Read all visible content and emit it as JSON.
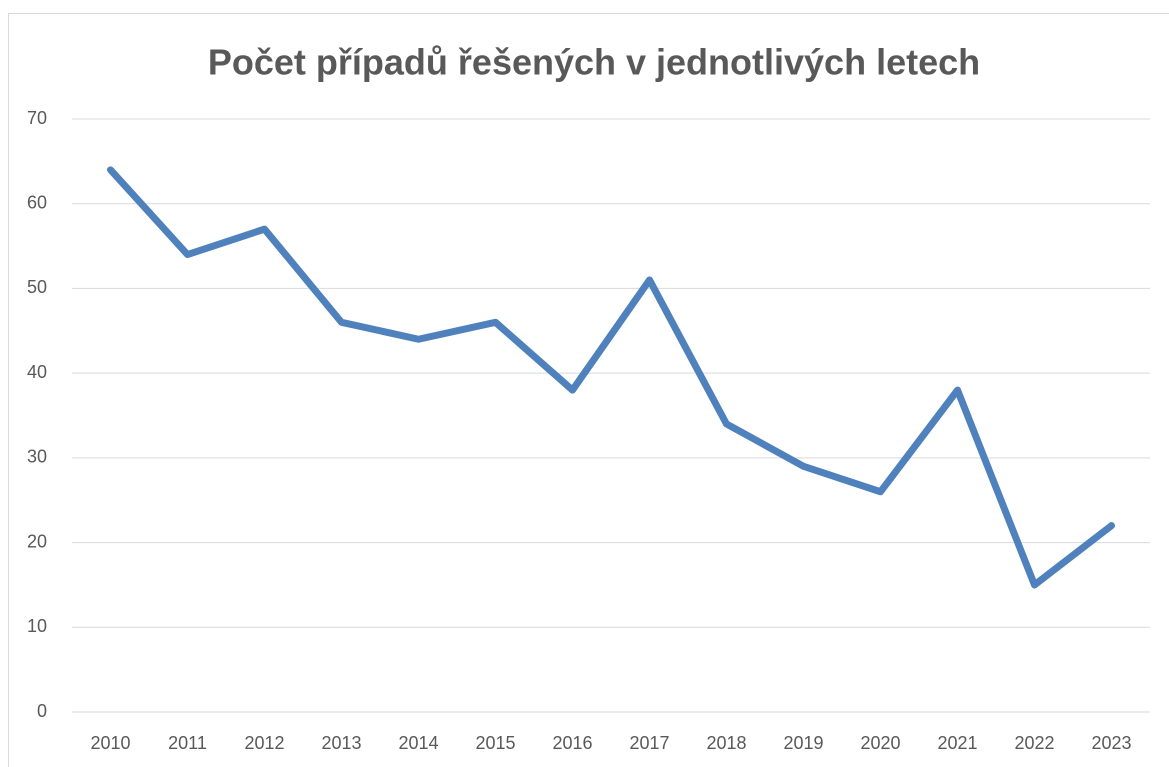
{
  "chart_data": {
    "type": "line",
    "title": "Počet případů řešených v jednotlivých letech",
    "categories": [
      "2010",
      "2011",
      "2012",
      "2013",
      "2014",
      "2015",
      "2016",
      "2017",
      "2018",
      "2019",
      "2020",
      "2021",
      "2022",
      "2023"
    ],
    "series": [
      {
        "name": "Počet případů",
        "color": "#4f81bd",
        "values": [
          64,
          54,
          57,
          46,
          44,
          46,
          38,
          51,
          34,
          29,
          26,
          38,
          15,
          22
        ]
      }
    ],
    "ylim": [
      0,
      70
    ],
    "yticks": [
      0,
      10,
      20,
      30,
      40,
      50,
      60,
      70
    ],
    "grid": true
  }
}
